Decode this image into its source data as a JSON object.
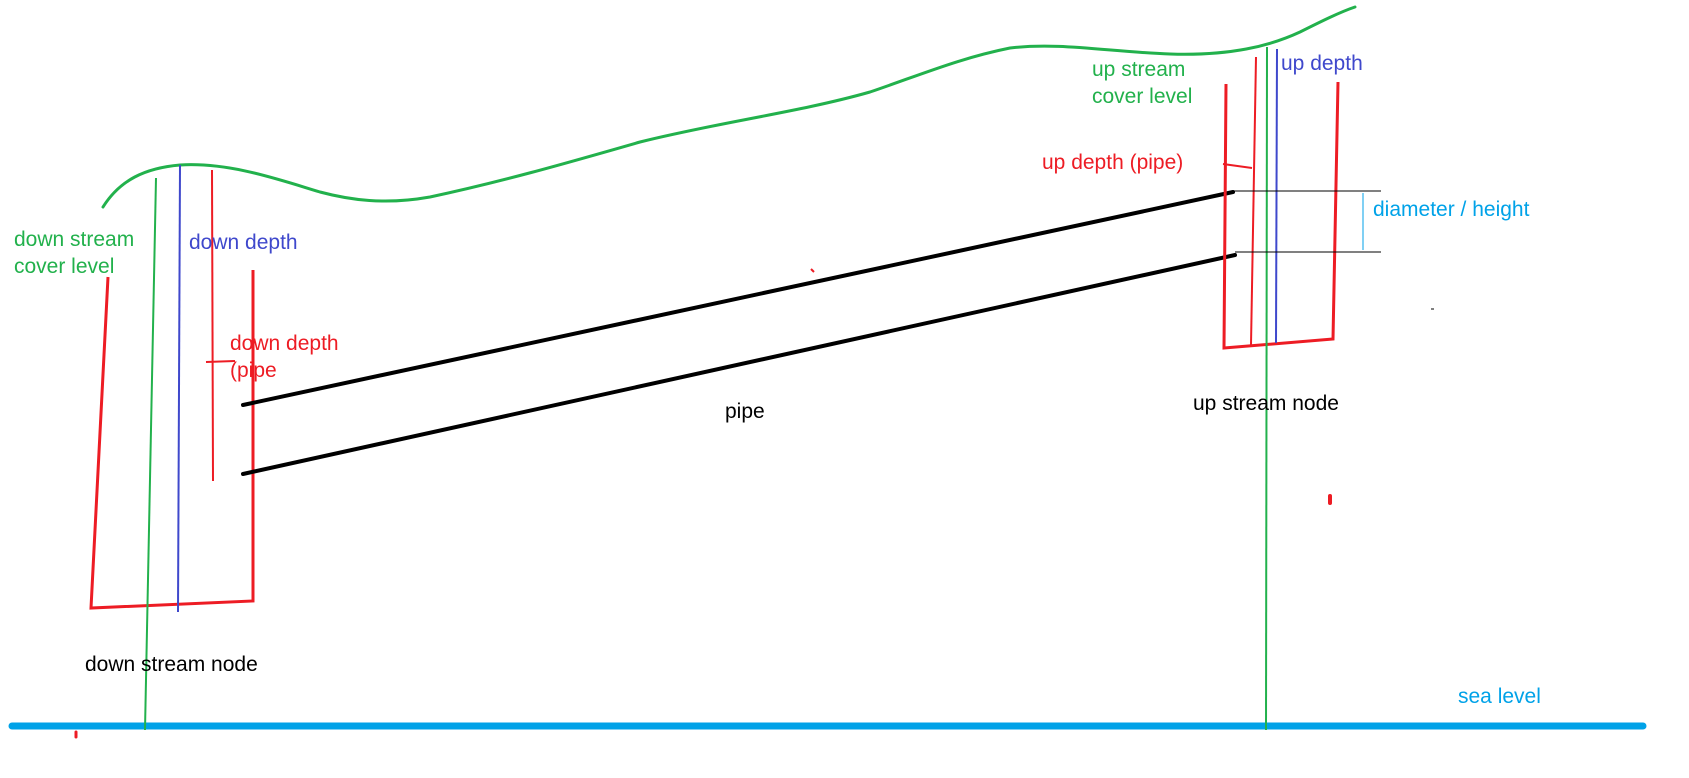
{
  "colors": {
    "ground": "#22b14c",
    "node": "#ed1c24",
    "depth": "#3f48cc",
    "pipe": "#000000",
    "sea": "#00a2e8",
    "diameter": "#00a2e8",
    "text": "#000000"
  },
  "labels": {
    "down_stream_cover_level_line1": "down stream",
    "down_stream_cover_level_line2": "cover level",
    "down_depth": "down depth",
    "down_depth_pipe_line1": "down depth",
    "down_depth_pipe_line2": "(pipe",
    "pipe": "pipe",
    "down_stream_node": "down stream node",
    "up_stream_cover_level_line1": "up stream",
    "up_stream_cover_level_line2": "cover level",
    "up_depth": "up depth",
    "up_depth_pipe": "up depth (pipe)",
    "diameter_height": "diameter / height",
    "up_stream_node": "up stream node",
    "sea_level": "sea level"
  }
}
